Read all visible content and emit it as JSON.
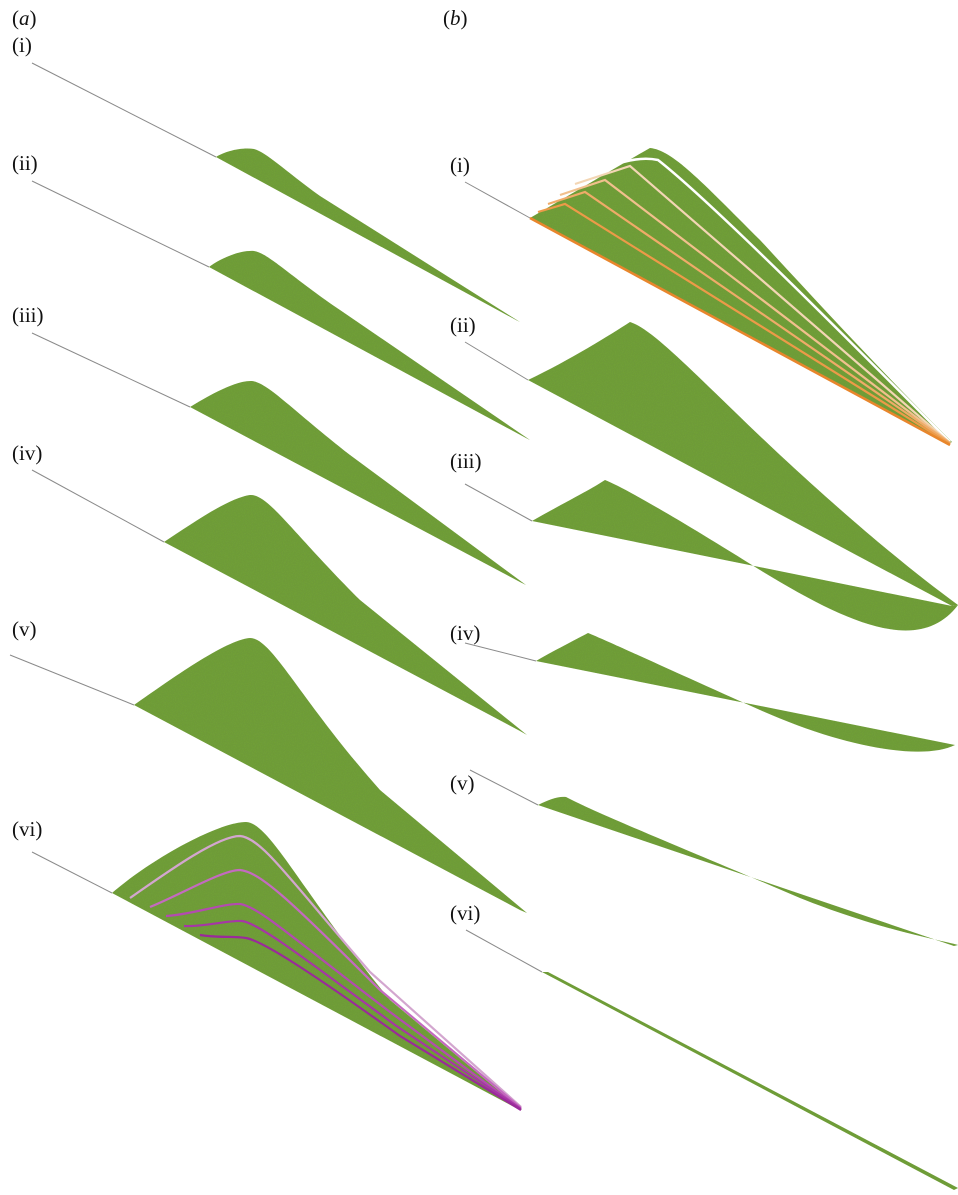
{
  "panel_a": {
    "title": "a",
    "items": [
      {
        "label": "(i)"
      },
      {
        "label": "(ii)"
      },
      {
        "label": "(iii)"
      },
      {
        "label": "(iv)"
      },
      {
        "label": "(v)"
      },
      {
        "label": "(vi)"
      }
    ]
  },
  "panel_b": {
    "title": "b",
    "items": [
      {
        "label": "(i)"
      },
      {
        "label": "(ii)"
      },
      {
        "label": "(iii)"
      },
      {
        "label": "(iv)"
      },
      {
        "label": "(v)"
      },
      {
        "label": "(vi)"
      }
    ]
  },
  "colors": {
    "canopy_green": "#6f9f37",
    "canopy_dark": "#5a8a2c",
    "canopy_edge": "#4c7a24",
    "baseline_grey": "#8a8a8a",
    "contour_purple": [
      "#d3a6cf",
      "#c46ac0",
      "#b34bb0",
      "#a636a6",
      "#9a2a9a"
    ],
    "contour_orange": [
      "#ffffff",
      "#f3d6b4",
      "#f1c08d",
      "#efab68",
      "#ec9a48",
      "#e8862c"
    ]
  }
}
